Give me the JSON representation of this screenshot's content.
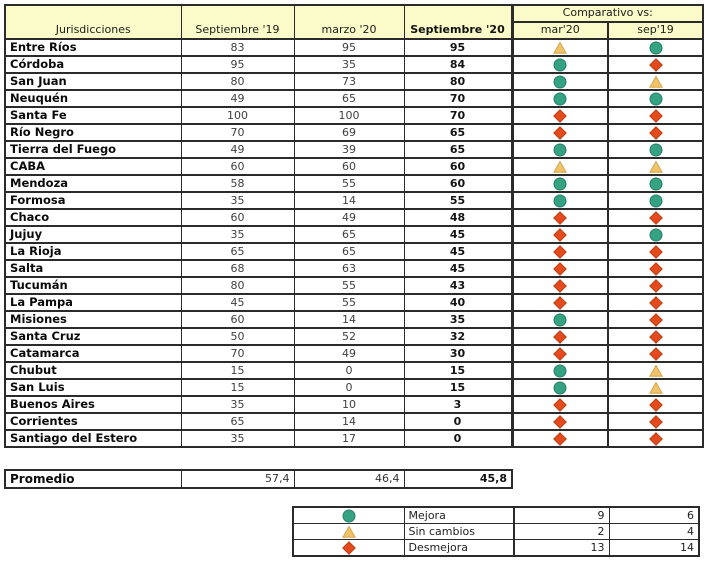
{
  "colors": {
    "header_bg": "#FBFBC9",
    "border": "#2B2B2B",
    "mejora_fill": "#36A284",
    "mejora_stroke": "#27806A",
    "sin_cambios_fill": "#F0C26A",
    "sin_cambios_stroke": "#D9A347",
    "desmejora_fill": "#E34A1C",
    "desmejora_stroke": "#BF3E14"
  },
  "table_headers": {
    "jurisdicciones": "Jurisdicciones",
    "sep19": "Septiembre '19",
    "mar20": "marzo '20",
    "sep20": "Septiembre '20",
    "comparativo": "Comparativo vs:",
    "vs_mar20": "mar'20",
    "vs_sep19": "sep'19"
  },
  "chart_data": {
    "type": "table",
    "columns": [
      "Jurisdicciones",
      "Septiembre '19",
      "marzo '20",
      "Septiembre '20",
      "Comparativo vs: mar'20",
      "Comparativo vs: sep'19"
    ],
    "icon_semantics": {
      "mejora": "green-circle",
      "sin_cambios": "yellow-triangle",
      "desmejora": "red-diamond"
    },
    "rows": [
      {
        "name": "Entre Ríos",
        "sep19": 83,
        "mar20": 95,
        "sep20": 95,
        "vs_mar20": "sin_cambios",
        "vs_sep19": "mejora"
      },
      {
        "name": "Córdoba",
        "sep19": 95,
        "mar20": 35,
        "sep20": 84,
        "vs_mar20": "mejora",
        "vs_sep19": "desmejora"
      },
      {
        "name": "San Juan",
        "sep19": 80,
        "mar20": 73,
        "sep20": 80,
        "vs_mar20": "mejora",
        "vs_sep19": "sin_cambios"
      },
      {
        "name": "Neuquén",
        "sep19": 49,
        "mar20": 65,
        "sep20": 70,
        "vs_mar20": "mejora",
        "vs_sep19": "mejora"
      },
      {
        "name": "Santa Fe",
        "sep19": 100,
        "mar20": 100,
        "sep20": 70,
        "vs_mar20": "desmejora",
        "vs_sep19": "desmejora"
      },
      {
        "name": "Río Negro",
        "sep19": 70,
        "mar20": 69,
        "sep20": 65,
        "vs_mar20": "desmejora",
        "vs_sep19": "desmejora"
      },
      {
        "name": "Tierra del Fuego",
        "sep19": 49,
        "mar20": 39,
        "sep20": 65,
        "vs_mar20": "mejora",
        "vs_sep19": "mejora"
      },
      {
        "name": "CABA",
        "sep19": 60,
        "mar20": 60,
        "sep20": 60,
        "vs_mar20": "sin_cambios",
        "vs_sep19": "sin_cambios"
      },
      {
        "name": "Mendoza",
        "sep19": 58,
        "mar20": 55,
        "sep20": 60,
        "vs_mar20": "mejora",
        "vs_sep19": "mejora"
      },
      {
        "name": "Formosa",
        "sep19": 35,
        "mar20": 14,
        "sep20": 55,
        "vs_mar20": "mejora",
        "vs_sep19": "mejora"
      },
      {
        "name": "Chaco",
        "sep19": 60,
        "mar20": 49,
        "sep20": 48,
        "vs_mar20": "desmejora",
        "vs_sep19": "desmejora"
      },
      {
        "name": "Jujuy",
        "sep19": 35,
        "mar20": 65,
        "sep20": 45,
        "vs_mar20": "desmejora",
        "vs_sep19": "mejora"
      },
      {
        "name": "La Rioja",
        "sep19": 65,
        "mar20": 65,
        "sep20": 45,
        "vs_mar20": "desmejora",
        "vs_sep19": "desmejora"
      },
      {
        "name": "Salta",
        "sep19": 68,
        "mar20": 63,
        "sep20": 45,
        "vs_mar20": "desmejora",
        "vs_sep19": "desmejora"
      },
      {
        "name": "Tucumán",
        "sep19": 80,
        "mar20": 55,
        "sep20": 43,
        "vs_mar20": "desmejora",
        "vs_sep19": "desmejora"
      },
      {
        "name": "La Pampa",
        "sep19": 45,
        "mar20": 55,
        "sep20": 40,
        "vs_mar20": "desmejora",
        "vs_sep19": "desmejora"
      },
      {
        "name": "Misiones",
        "sep19": 60,
        "mar20": 14,
        "sep20": 35,
        "vs_mar20": "mejora",
        "vs_sep19": "desmejora"
      },
      {
        "name": "Santa Cruz",
        "sep19": 50,
        "mar20": 52,
        "sep20": 32,
        "vs_mar20": "desmejora",
        "vs_sep19": "desmejora"
      },
      {
        "name": "Catamarca",
        "sep19": 70,
        "mar20": 49,
        "sep20": 30,
        "vs_mar20": "desmejora",
        "vs_sep19": "desmejora"
      },
      {
        "name": "Chubut",
        "sep19": 15,
        "mar20": 0,
        "sep20": 15,
        "vs_mar20": "mejora",
        "vs_sep19": "sin_cambios"
      },
      {
        "name": "San Luis",
        "sep19": 15,
        "mar20": 0,
        "sep20": 15,
        "vs_mar20": "mejora",
        "vs_sep19": "sin_cambios"
      },
      {
        "name": "Buenos Aires",
        "sep19": 35,
        "mar20": 10,
        "sep20": 3,
        "vs_mar20": "desmejora",
        "vs_sep19": "desmejora"
      },
      {
        "name": "Corrientes",
        "sep19": 65,
        "mar20": 14,
        "sep20": 0,
        "vs_mar20": "desmejora",
        "vs_sep19": "desmejora"
      },
      {
        "name": "Santiago del Estero",
        "sep19": 35,
        "mar20": 17,
        "sep20": 0,
        "vs_mar20": "desmejora",
        "vs_sep19": "desmejora"
      }
    ],
    "promedio": {
      "label": "Promedio",
      "values": [
        "57,4",
        "46,4",
        "45,8"
      ]
    },
    "legend_counts": [
      {
        "icon": "mejora",
        "label": "Mejora",
        "vs_mar20": "9",
        "vs_sep19": "6"
      },
      {
        "icon": "sin_cambios",
        "label": "Sin cambios",
        "vs_mar20": "2",
        "vs_sep19": "4"
      },
      {
        "icon": "desmejora",
        "label": "Desmejora",
        "vs_mar20": "13",
        "vs_sep19": "14"
      }
    ]
  }
}
